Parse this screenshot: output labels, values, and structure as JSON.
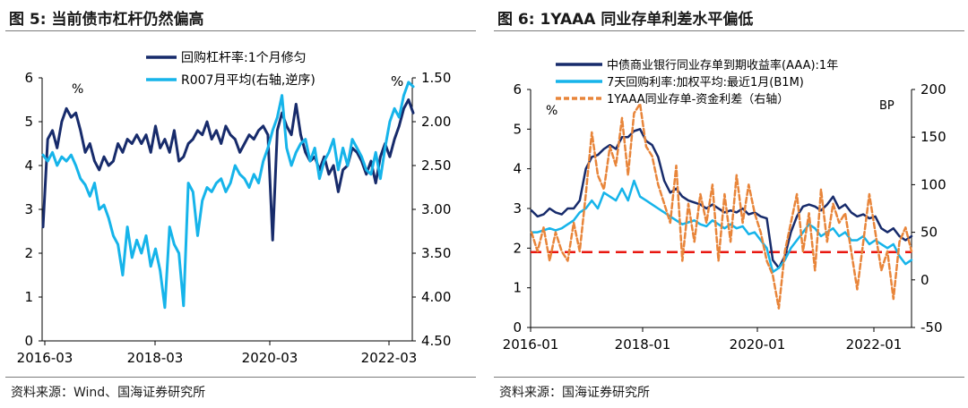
{
  "charts": [
    {
      "figure_title": "图 5:  当前债市杠杆仍然偏高",
      "source": "资料来源：Wind、国海证券研究所",
      "chart_data": {
        "type": "line",
        "title": "当前债市杠杆仍然偏高",
        "unit_left": "%",
        "unit_right": "%",
        "x_ticks": [
          "2016-03",
          "2018-03",
          "2020-03",
          "2022-03"
        ],
        "x_range": [
          "2016-03",
          "2022-09"
        ],
        "y_left": {
          "range": [
            0,
            6
          ],
          "ticks": [
            "0",
            "1",
            "2",
            "3",
            "4",
            "5",
            "6"
          ]
        },
        "y_right": {
          "range": [
            1.5,
            4.5
          ],
          "reversed": true,
          "ticks": [
            "1.50",
            "2.00",
            "2.50",
            "3.00",
            "3.50",
            "4.00",
            "4.50"
          ]
        },
        "series": [
          {
            "name": "回购杠杆率:1个月修匀",
            "axis": "left",
            "color": "#172B6B",
            "values": [
              2.6,
              4.6,
              4.8,
              4.4,
              5.0,
              5.3,
              5.1,
              5.2,
              4.8,
              4.3,
              4.5,
              4.1,
              3.9,
              4.2,
              4.0,
              4.1,
              4.5,
              4.3,
              4.6,
              4.5,
              4.7,
              4.5,
              4.7,
              4.3,
              4.9,
              4.4,
              4.6,
              4.3,
              4.8,
              4.1,
              4.2,
              4.5,
              4.6,
              4.8,
              4.7,
              5.0,
              4.6,
              4.8,
              4.5,
              4.9,
              4.7,
              4.6,
              4.3,
              4.5,
              4.7,
              4.6,
              4.8,
              4.9,
              4.7,
              2.3,
              4.8,
              5.2,
              4.9,
              4.7,
              5.4,
              4.7,
              4.3,
              4.1,
              4.2,
              3.9,
              4.2,
              3.8,
              4.0,
              3.4,
              3.9,
              4.0,
              4.4,
              4.3,
              4.1,
              3.8,
              4.1,
              3.6,
              4.2,
              4.5,
              4.2,
              4.6,
              4.9,
              5.3,
              5.5,
              5.2
            ]
          },
          {
            "name": "R007月平均(右轴,逆序)",
            "axis": "right",
            "color": "#16B4EA",
            "values": [
              2.38,
              2.45,
              2.35,
              2.5,
              2.4,
              2.45,
              2.38,
              2.5,
              2.65,
              2.72,
              2.85,
              2.7,
              3.0,
              2.95,
              3.1,
              3.3,
              3.4,
              3.75,
              3.2,
              3.55,
              3.35,
              3.5,
              3.3,
              3.65,
              3.45,
              3.7,
              4.12,
              3.2,
              3.4,
              3.5,
              4.1,
              2.7,
              2.8,
              3.3,
              2.9,
              2.75,
              2.8,
              2.7,
              2.65,
              2.8,
              2.7,
              2.5,
              2.6,
              2.65,
              2.75,
              2.6,
              2.7,
              2.45,
              2.3,
              2.1,
              1.95,
              1.7,
              2.3,
              2.5,
              2.35,
              2.25,
              2.2,
              2.45,
              2.3,
              2.65,
              2.45,
              2.35,
              2.2,
              2.55,
              2.3,
              2.5,
              2.2,
              2.3,
              2.4,
              2.55,
              2.6,
              2.35,
              2.65,
              2.3,
              2.0,
              1.85,
              1.95,
              1.7,
              1.55,
              1.6
            ]
          }
        ]
      }
    },
    {
      "figure_title": "图 6:  1YAAA 同业存单利差水平偏低",
      "source": "资料来源：国海证券研究所",
      "chart_data": {
        "type": "line",
        "title": "1YAAA 同业存单利差水平偏低",
        "unit_left": "%",
        "unit_right": "BP",
        "x_ticks": [
          "2016-01",
          "2018-01",
          "2020-01",
          "2022-01"
        ],
        "x_range": [
          "2016-01",
          "2022-09"
        ],
        "y_left": {
          "range": [
            0,
            6
          ],
          "ticks": [
            "0",
            "1",
            "2",
            "3",
            "4",
            "5",
            "6"
          ]
        },
        "y_right": {
          "range": [
            -50,
            200
          ],
          "ticks": [
            "-50",
            "0",
            "50",
            "100",
            "150",
            "200"
          ]
        },
        "reference_line": {
          "axis": "left",
          "value": 1.9,
          "color": "#E8160F"
        },
        "series": [
          {
            "name": "中债商业银行同业存单到期收益率(AAA):1年",
            "axis": "left",
            "color": "#172B6B",
            "values": [
              2.95,
              2.8,
              2.85,
              3.0,
              2.9,
              2.85,
              3.0,
              3.0,
              3.2,
              4.0,
              4.3,
              4.35,
              4.5,
              4.6,
              4.5,
              4.8,
              4.8,
              4.95,
              5.0,
              4.7,
              4.6,
              4.3,
              3.7,
              3.4,
              3.5,
              3.3,
              3.2,
              3.15,
              3.1,
              3.0,
              3.1,
              3.0,
              2.9,
              2.95,
              2.9,
              3.0,
              2.85,
              2.9,
              2.8,
              2.75,
              1.7,
              1.5,
              1.8,
              2.4,
              2.8,
              3.05,
              3.1,
              3.05,
              2.95,
              3.1,
              3.3,
              3.0,
              3.1,
              2.9,
              2.8,
              2.85,
              2.75,
              2.8,
              2.5,
              2.4,
              2.5,
              2.3,
              2.2,
              2.3
            ]
          },
          {
            "name": "7天回购利率:加权平均:最近1月(B1M)",
            "axis": "left",
            "color": "#16B4EA",
            "values": [
              2.4,
              2.4,
              2.45,
              2.5,
              2.45,
              2.5,
              2.6,
              2.7,
              2.9,
              3.0,
              3.2,
              3.0,
              3.4,
              3.3,
              3.2,
              3.5,
              3.2,
              3.7,
              3.3,
              3.2,
              3.1,
              3.0,
              2.9,
              2.8,
              2.7,
              2.6,
              2.65,
              2.7,
              2.6,
              2.55,
              2.7,
              2.6,
              2.5,
              2.6,
              2.5,
              2.55,
              2.35,
              2.4,
              2.2,
              2.0,
              1.4,
              1.5,
              1.7,
              2.0,
              2.2,
              2.4,
              2.6,
              2.5,
              2.3,
              2.4,
              2.5,
              2.3,
              2.4,
              2.2,
              2.2,
              2.3,
              2.1,
              2.2,
              2.1,
              2.0,
              2.1,
              1.8,
              1.6,
              1.7
            ]
          },
          {
            "name": "1YAAA同业存单-资金利差（右轴）",
            "axis": "right",
            "color": "#E8853A",
            "dashed": true,
            "values": [
              50,
              30,
              55,
              20,
              50,
              30,
              20,
              60,
              30,
              90,
              155,
              110,
              95,
              140,
              120,
              170,
              110,
              175,
              185,
              140,
              130,
              100,
              80,
              60,
              120,
              20,
              80,
              40,
              90,
              60,
              100,
              20,
              90,
              40,
              110,
              60,
              100,
              70,
              50,
              20,
              5,
              -30,
              30,
              60,
              90,
              30,
              70,
              10,
              95,
              40,
              80,
              60,
              70,
              30,
              -10,
              40,
              90,
              50,
              10,
              30,
              -20,
              40,
              55,
              30
            ]
          }
        ]
      }
    }
  ]
}
